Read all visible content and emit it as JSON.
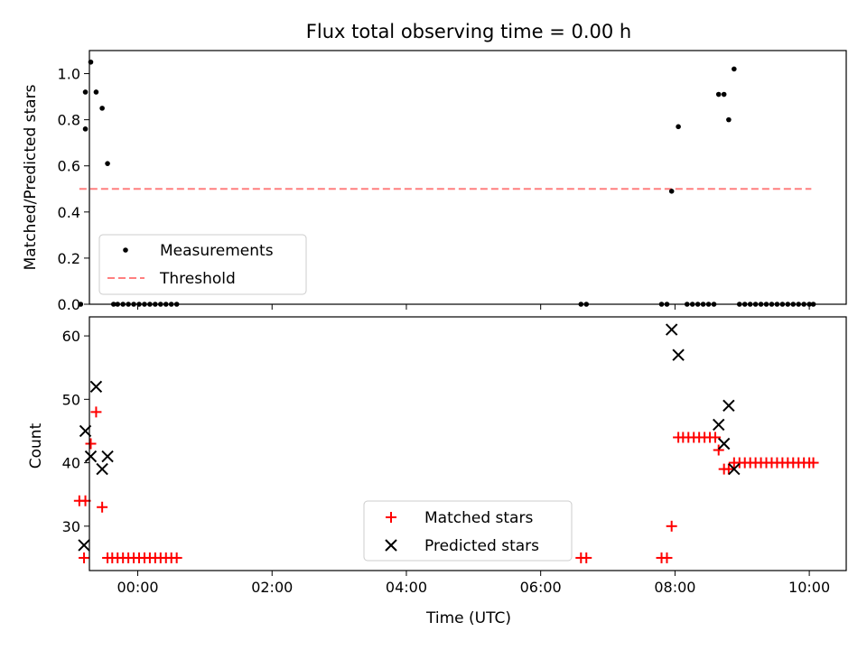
{
  "chart_data": [
    {
      "type": "scatter",
      "title": "Flux total observing time = 0.00 h",
      "xlabel": "",
      "ylabel": "Matched/Predicted stars",
      "xlim": [
        -0.72,
        10.55
      ],
      "ylim": [
        0.0,
        1.1
      ],
      "yticks": [
        0.0,
        0.2,
        0.4,
        0.6,
        0.8,
        1.0
      ],
      "ytick_labels": [
        "0.0",
        "0.2",
        "0.4",
        "0.6",
        "0.8",
        "1.0"
      ],
      "xticks": [
        0,
        2,
        4,
        6,
        8,
        10
      ],
      "legend_position": "lower-left",
      "legend": [
        "Measurements",
        "Threshold"
      ],
      "threshold": {
        "value": 0.5,
        "x_range": [
          -0.87,
          10.03
        ],
        "color": "#ff7f7f",
        "style": "dashed"
      },
      "series": [
        {
          "name": "Measurements",
          "color": "#000000",
          "marker": "dot",
          "x": [
            -0.85,
            -0.78,
            -0.7,
            -0.62,
            -0.53,
            -0.45,
            -0.78,
            -0.36,
            -0.3,
            -0.22,
            -0.14,
            -0.06,
            0.02,
            0.1,
            0.18,
            0.26,
            0.34,
            0.42,
            0.5,
            0.58,
            6.6,
            6.68,
            7.8,
            7.88,
            7.95,
            8.05,
            8.18,
            8.26,
            8.34,
            8.42,
            8.5,
            8.58,
            8.65,
            8.73,
            8.8,
            8.88,
            8.96,
            9.04,
            9.12,
            9.2,
            9.28,
            9.36,
            9.44,
            9.52,
            9.6,
            9.68,
            9.76,
            9.84,
            9.92,
            10.0,
            10.06
          ],
          "y": [
            0.0,
            0.92,
            1.05,
            0.92,
            0.85,
            0.61,
            0.76,
            0.0,
            0.0,
            0.0,
            0.0,
            0.0,
            0.0,
            0.0,
            0.0,
            0.0,
            0.0,
            0.0,
            0.0,
            0.0,
            0.0,
            0.0,
            0.0,
            0.0,
            0.49,
            0.77,
            0.0,
            0.0,
            0.0,
            0.0,
            0.0,
            0.0,
            0.91,
            0.91,
            0.8,
            1.02,
            0.0,
            0.0,
            0.0,
            0.0,
            0.0,
            0.0,
            0.0,
            0.0,
            0.0,
            0.0,
            0.0,
            0.0,
            0.0,
            0.0,
            0.0
          ]
        }
      ]
    },
    {
      "type": "scatter",
      "title": "",
      "xlabel": "Time (UTC)",
      "ylabel": "Count",
      "xlim": [
        -0.72,
        10.55
      ],
      "ylim": [
        23,
        63
      ],
      "yticks": [
        30,
        40,
        50,
        60
      ],
      "ytick_labels": [
        "30",
        "40",
        "50",
        "60"
      ],
      "xticks": [
        0,
        2,
        4,
        6,
        8,
        10
      ],
      "xtick_labels": [
        "00:00",
        "02:00",
        "04:00",
        "06:00",
        "08:00",
        "10:00"
      ],
      "legend_position": "lower-center",
      "legend": [
        "Matched stars",
        "Predicted stars"
      ],
      "series": [
        {
          "name": "Matched stars",
          "color": "#ff0000",
          "marker": "plus",
          "x": [
            -0.87,
            -0.78,
            -0.7,
            -0.62,
            -0.53,
            -0.45,
            -0.8,
            -0.38,
            -0.3,
            -0.22,
            -0.14,
            -0.06,
            0.02,
            0.1,
            0.18,
            0.26,
            0.34,
            0.42,
            0.5,
            0.58,
            6.6,
            6.68,
            7.8,
            7.88,
            7.95,
            8.05,
            8.12,
            8.2,
            8.28,
            8.36,
            8.44,
            8.52,
            8.6,
            8.65,
            8.73,
            8.8,
            8.88,
            8.96,
            9.04,
            9.12,
            9.2,
            9.28,
            9.36,
            9.44,
            9.52,
            9.6,
            9.68,
            9.76,
            9.84,
            9.92,
            10.0,
            10.06
          ],
          "y": [
            34,
            34,
            43,
            48,
            33,
            25,
            25,
            25,
            25,
            25,
            25,
            25,
            25,
            25,
            25,
            25,
            25,
            25,
            25,
            25,
            25,
            25,
            25,
            25,
            30,
            44,
            44,
            44,
            44,
            44,
            44,
            44,
            44,
            42,
            39,
            39,
            40,
            40,
            40,
            40,
            40,
            40,
            40,
            40,
            40,
            40,
            40,
            40,
            40,
            40,
            40,
            40
          ]
        },
        {
          "name": "Predicted stars",
          "color": "#000000",
          "marker": "x",
          "x": [
            -0.8,
            -0.7,
            -0.62,
            -0.53,
            -0.45,
            -0.78,
            7.95,
            8.05,
            8.65,
            8.73,
            8.8,
            8.88
          ],
          "y": [
            27,
            41,
            52,
            39,
            41,
            45,
            61,
            57,
            46,
            43,
            49,
            39
          ]
        }
      ]
    }
  ]
}
